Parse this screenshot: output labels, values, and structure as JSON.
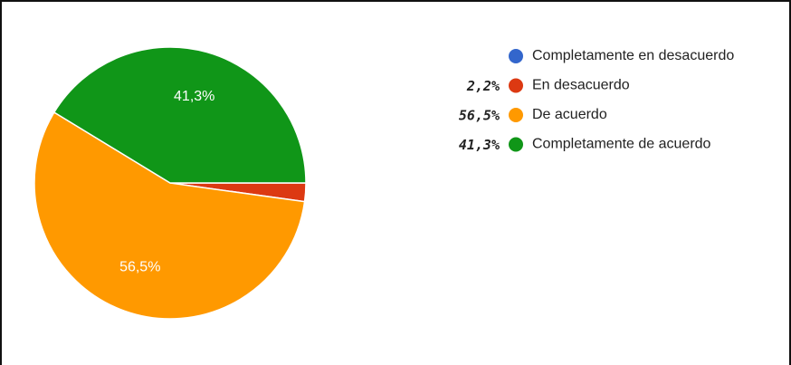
{
  "chart_data": {
    "type": "pie",
    "categories": [
      "Completamente en desacuerdo",
      "En desacuerdo",
      "De acuerdo",
      "Completamente de acuerdo"
    ],
    "values": [
      0,
      2.2,
      56.5,
      41.3
    ],
    "value_labels": [
      null,
      null,
      "56,5%",
      "41,3%"
    ],
    "legend_notes": [
      null,
      "2,2%",
      "56,5%",
      "41,3%"
    ],
    "colors": [
      "#3366cc",
      "#dc3912",
      "#ff9900",
      "#109618"
    ],
    "legend": "right"
  }
}
